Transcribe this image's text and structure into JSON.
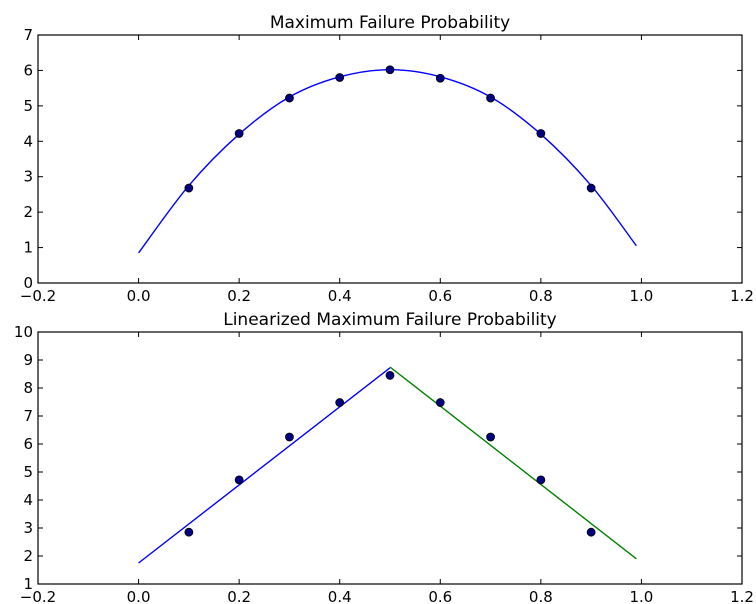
{
  "chart_data": [
    {
      "type": "line",
      "title": "Maximum Failure Probability",
      "xlabel": "",
      "ylabel": "",
      "xlim": [
        -0.2,
        1.2
      ],
      "ylim": [
        0,
        7
      ],
      "xticks": [
        "−0.2",
        "0.0",
        "0.2",
        "0.4",
        "0.6",
        "0.8",
        "1.0",
        "1.2"
      ],
      "yticks": [
        "0",
        "1",
        "2",
        "3",
        "4",
        "5",
        "6",
        "7"
      ],
      "grid": false,
      "points": {
        "x": [
          0.1,
          0.2,
          0.3,
          0.4,
          0.5,
          0.6,
          0.7,
          0.8,
          0.9
        ],
        "y": [
          2.68,
          4.22,
          5.22,
          5.8,
          6.02,
          5.78,
          5.22,
          4.22,
          2.68
        ],
        "color": "#000080"
      },
      "series": [
        {
          "style": "curve",
          "color": "#0000ff",
          "x": [
            0.0,
            0.1,
            0.2,
            0.3,
            0.4,
            0.5,
            0.6,
            0.7,
            0.8,
            0.9,
            0.99
          ],
          "y": [
            0.85,
            2.75,
            4.2,
            5.25,
            5.82,
            6.02,
            5.82,
            5.25,
            4.2,
            2.75,
            1.05
          ]
        }
      ]
    },
    {
      "type": "line",
      "title": "Linearized Maximum Failure Probability",
      "xlabel": "",
      "ylabel": "",
      "xlim": [
        -0.2,
        1.2
      ],
      "ylim": [
        1,
        10
      ],
      "xticks": [
        "−0.2",
        "0.0",
        "0.2",
        "0.4",
        "0.6",
        "0.8",
        "1.0",
        "1.2"
      ],
      "yticks": [
        "1",
        "2",
        "3",
        "4",
        "5",
        "6",
        "7",
        "8",
        "9",
        "10"
      ],
      "grid": false,
      "points": {
        "x": [
          0.1,
          0.2,
          0.3,
          0.4,
          0.5,
          0.6,
          0.7,
          0.8,
          0.9
        ],
        "y": [
          2.85,
          4.72,
          6.25,
          7.48,
          8.45,
          7.48,
          6.25,
          4.72,
          2.85
        ],
        "color": "#000080"
      },
      "series": [
        {
          "style": "line",
          "color": "#0000ff",
          "x": [
            0.0,
            0.5
          ],
          "y": [
            1.75,
            8.72
          ]
        },
        {
          "style": "line",
          "color": "#008000",
          "x": [
            0.5,
            0.99
          ],
          "y": [
            8.75,
            1.9
          ]
        }
      ]
    }
  ]
}
